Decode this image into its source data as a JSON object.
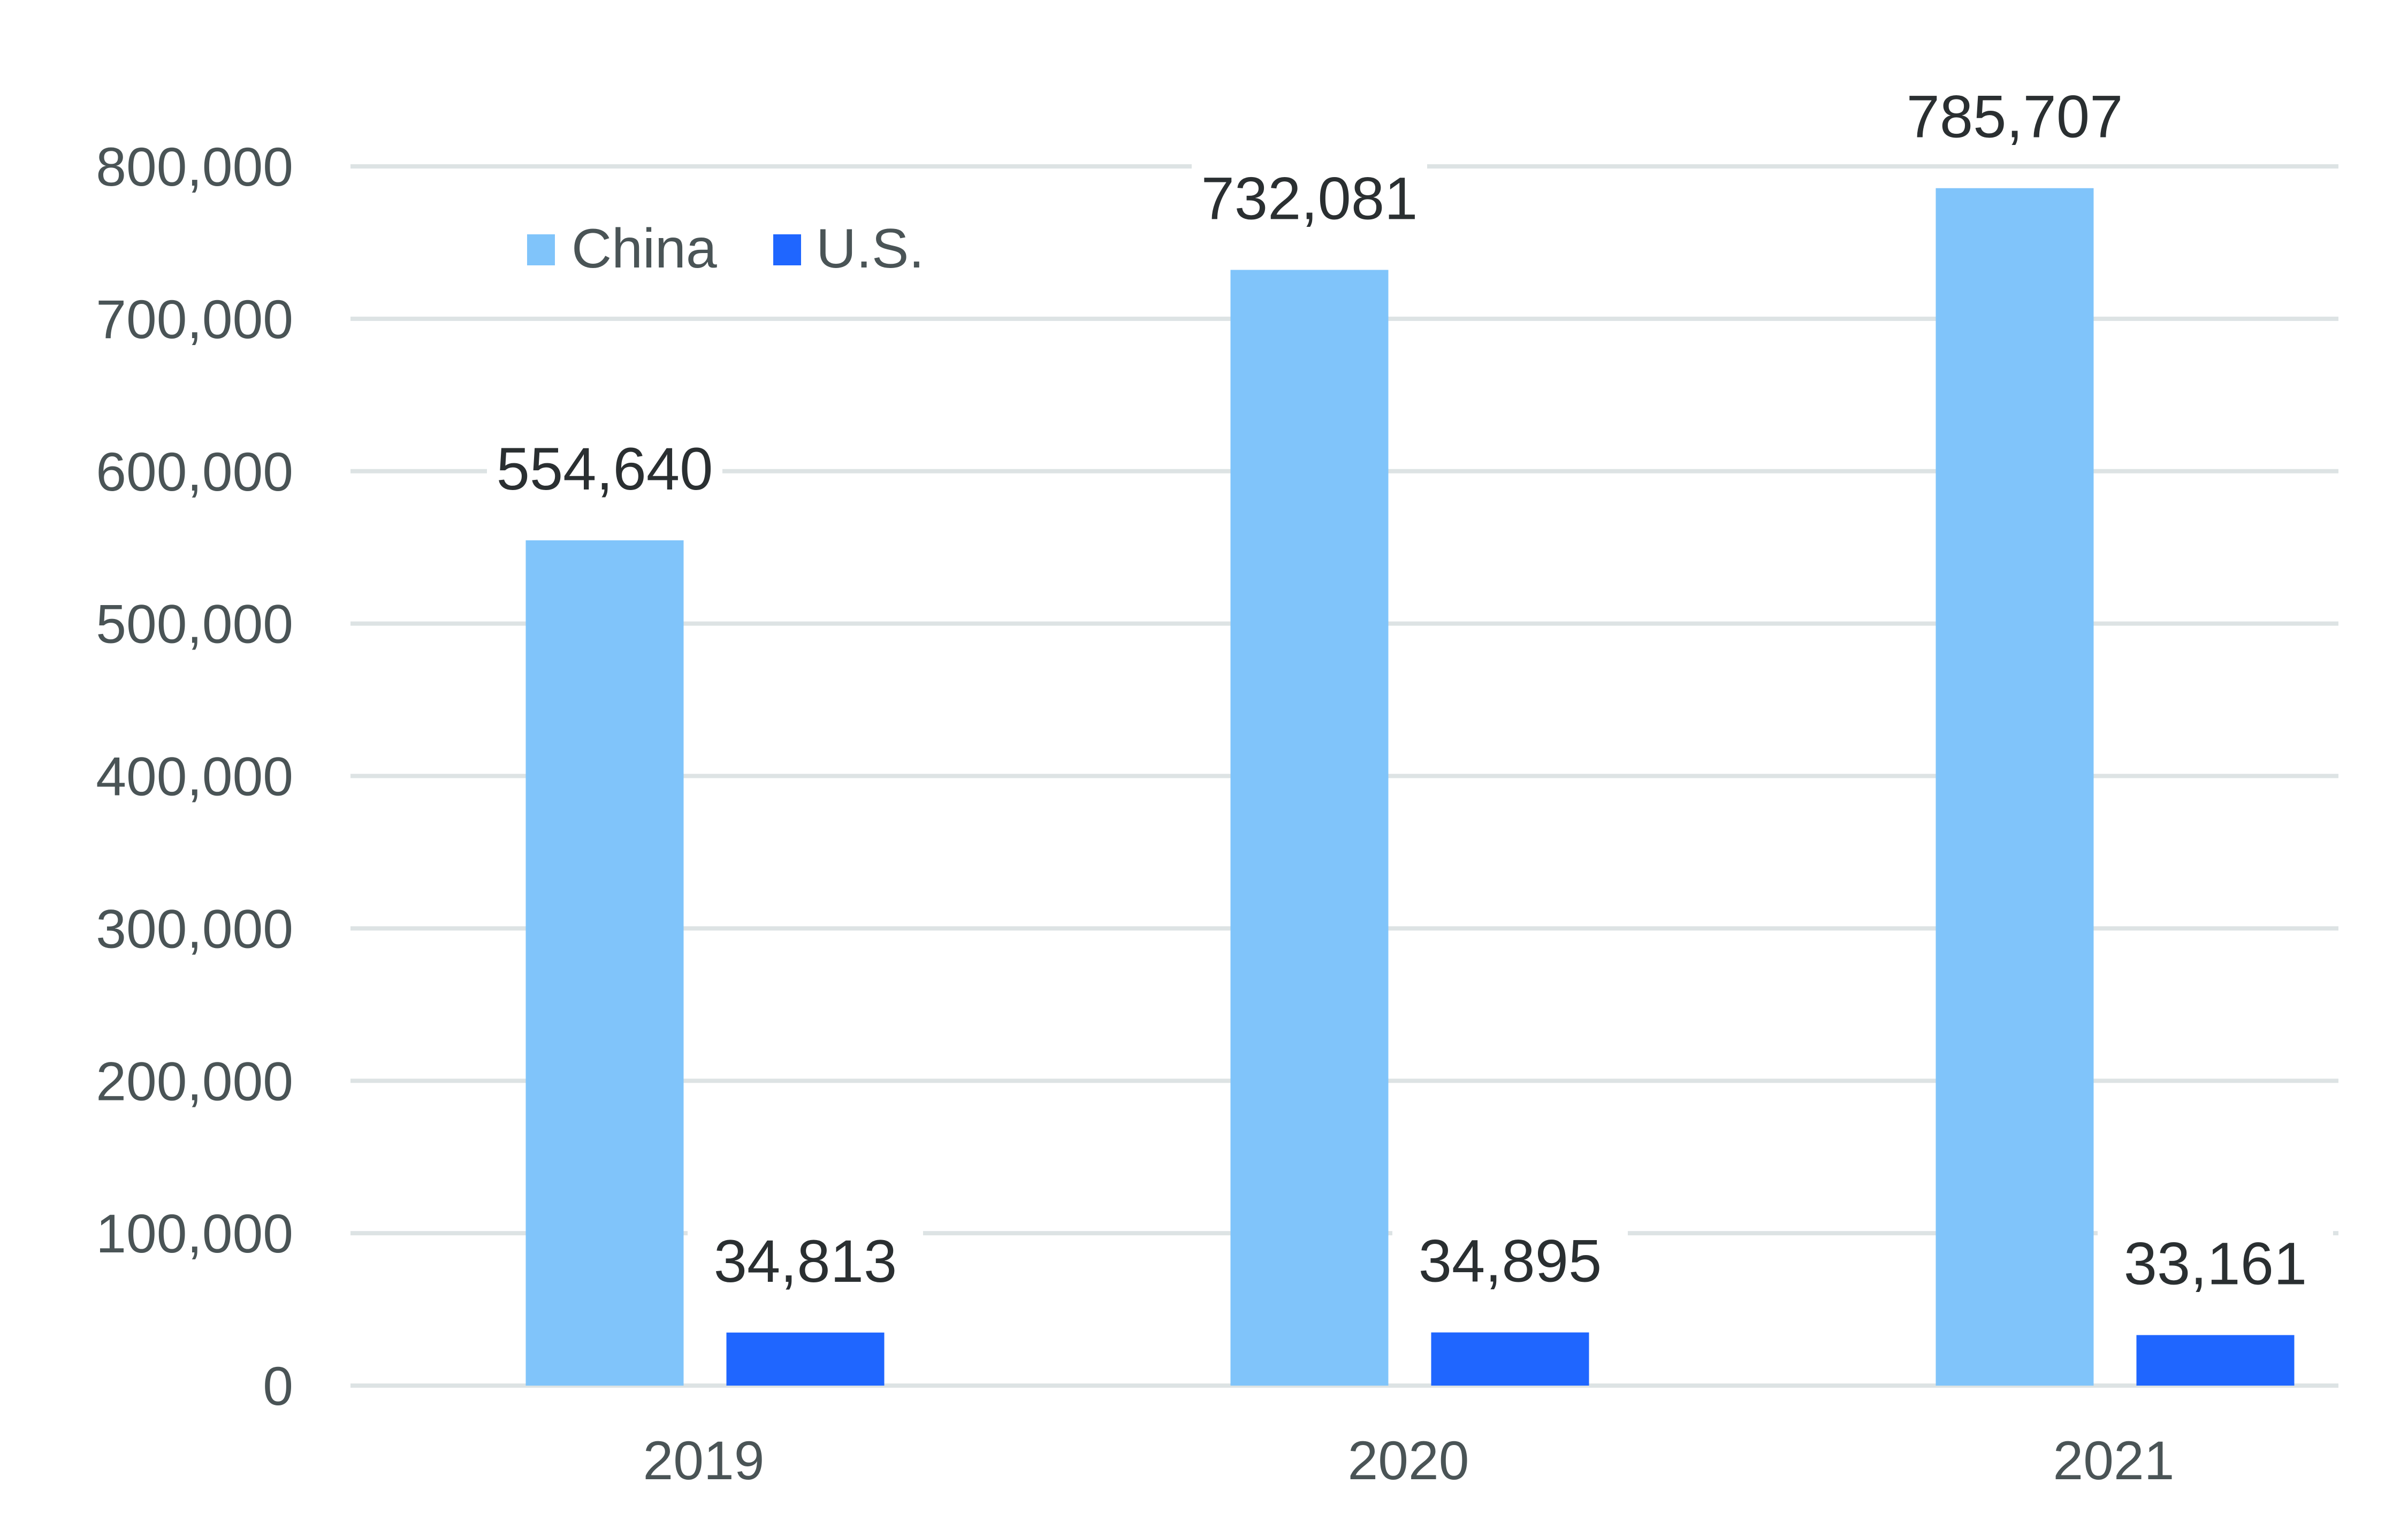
{
  "chart_data": {
    "type": "bar",
    "categories": [
      "2019",
      "2020",
      "2021"
    ],
    "series": [
      {
        "name": "China",
        "values": [
          554640,
          732081,
          785707
        ],
        "color": "#80c4fa"
      },
      {
        "name": "U.S.",
        "values": [
          34813,
          34895,
          33161
        ],
        "color": "#1f66ff"
      }
    ],
    "data_labels": {
      "China": [
        "554,640",
        "732,081",
        "785,707"
      ],
      "U.S.": [
        "34,813",
        "34,895",
        "33,161"
      ]
    },
    "yticks": [
      0,
      100000,
      200000,
      300000,
      400000,
      500000,
      600000,
      700000,
      800000
    ],
    "ytick_labels": [
      "0",
      "100,000",
      "200,000",
      "300,000",
      "400,000",
      "500,000",
      "600,000",
      "700,000",
      "800,000"
    ],
    "ylim": [
      0,
      800000
    ],
    "grid": true,
    "legend": "top-left",
    "title": "",
    "xlabel": "",
    "ylabel": "",
    "gridline_color": "#dde3e4"
  }
}
